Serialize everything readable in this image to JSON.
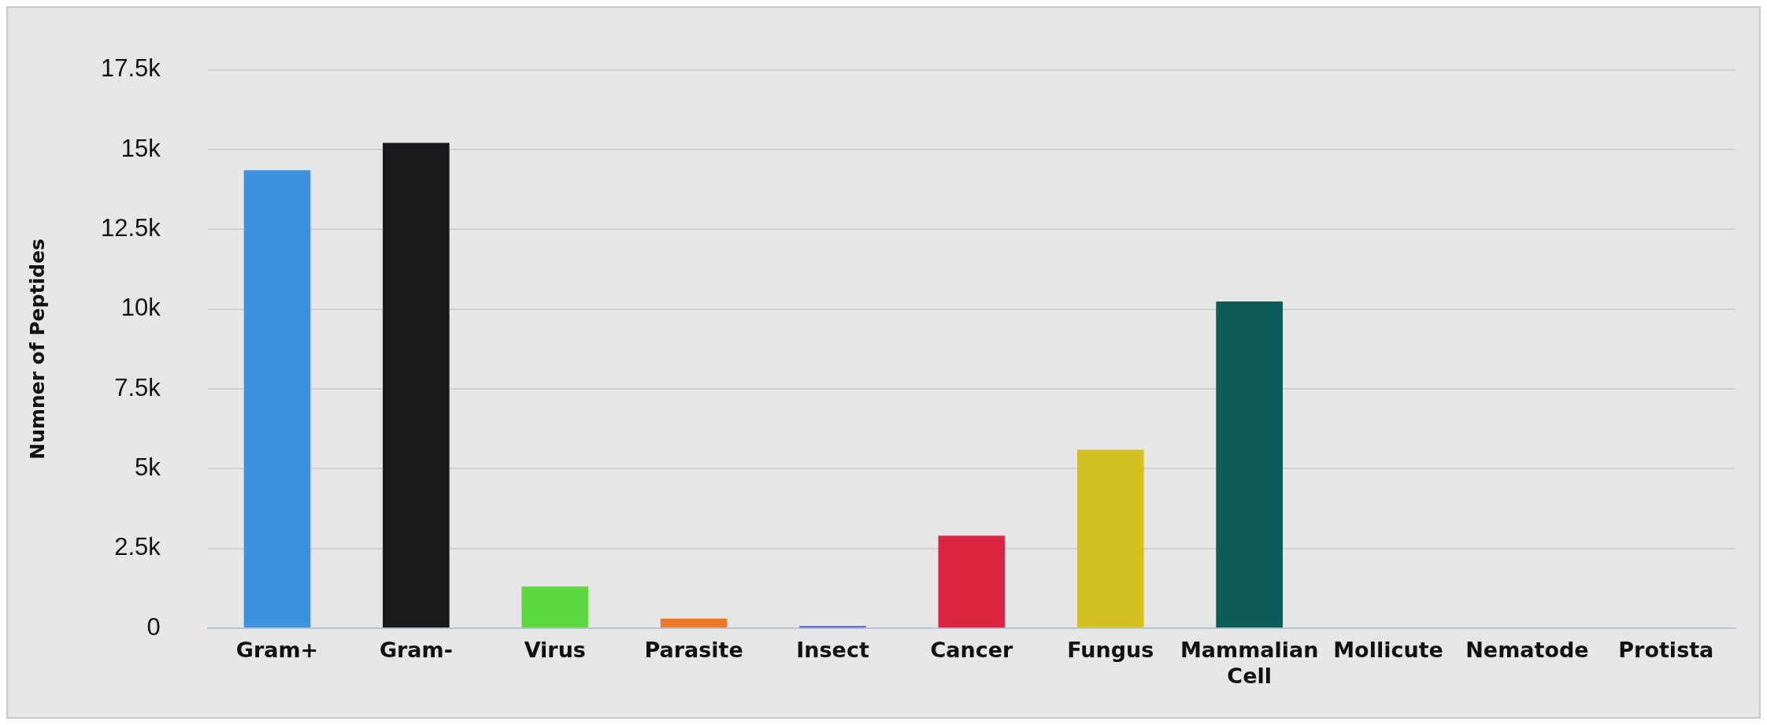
{
  "chart_data": {
    "type": "bar",
    "ylabel": "Numner of Peptides",
    "categories": [
      "Gram+",
      "Gram-",
      "Virus",
      "Parasite",
      "Insect",
      "Cancer",
      "Fungus",
      "Mammalian Cell",
      "Mollicute",
      "Nematode",
      "Protista"
    ],
    "values": [
      14350,
      15210,
      1310,
      310,
      70,
      2900,
      5600,
      10240,
      0,
      0,
      0
    ],
    "colors": [
      "#3d92dc",
      "#19191b",
      "#5bd93f",
      "#e87a2a",
      "#5a5adf",
      "#dc2443",
      "#d3c022",
      "#0d5b5b",
      "#0d5b5b",
      "#0d5b5b",
      "#0d5b5b"
    ],
    "ylim": [
      0,
      17500
    ],
    "yticks": [
      0,
      {
        "value": 2500,
        "label": "2.5k"
      },
      {
        "value": 5000,
        "label": "5k"
      },
      {
        "value": 7500,
        "label": "7.5k"
      },
      {
        "value": 10000,
        "label": "10k"
      },
      {
        "value": 12500,
        "label": "12.5k"
      },
      {
        "value": 15000,
        "label": "15k"
      },
      {
        "value": 17500,
        "label": "17.5k"
      }
    ],
    "grid": "y",
    "legend": false
  }
}
